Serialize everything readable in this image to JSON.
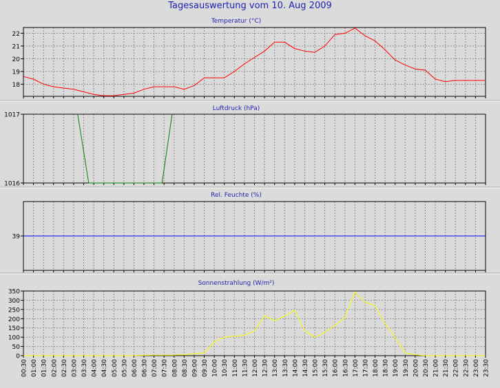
{
  "page_title": "Tagesauswertung vom 10. Aug 2009",
  "colors": {
    "background": "#dbdbdb",
    "title": "#1f1fb0",
    "grid": "#8c8c8c",
    "frame": "#000000",
    "temperature": "#ff0000",
    "pressure": "#008000",
    "humidity": "#0000ff",
    "radiation": "#ffff00"
  },
  "time_labels": [
    "00:30",
    "01:00",
    "01:30",
    "02:00",
    "02:30",
    "03:00",
    "03:30",
    "04:00",
    "04:30",
    "05:00",
    "05:30",
    "06:00",
    "06:30",
    "07:00",
    "07:30",
    "08:00",
    "08:30",
    "09:00",
    "09:30",
    "10:00",
    "10:30",
    "11:00",
    "11:30",
    "12:00",
    "12:30",
    "13:00",
    "13:30",
    "14:00",
    "14:30",
    "15:00",
    "15:30",
    "16:00",
    "16:30",
    "17:00",
    "17:30",
    "18:00",
    "18:30",
    "19:00",
    "19:30",
    "20:00",
    "20:30",
    "21:00",
    "21:30",
    "22:00",
    "22:30",
    "23:00",
    "23:30"
  ],
  "chart_data": [
    {
      "type": "line",
      "title": "Temperatur (°C)",
      "ylim": [
        17.05,
        22.45
      ],
      "yticks": [
        18,
        19,
        20,
        21,
        22
      ],
      "grid": true,
      "x": [
        0,
        1,
        2,
        3,
        4,
        5,
        6,
        7,
        8,
        9,
        10,
        11,
        12,
        13,
        14,
        15,
        16,
        17,
        18,
        19,
        20,
        21,
        22,
        23,
        24,
        25,
        26,
        27,
        28,
        29,
        30,
        31,
        32,
        33,
        34,
        35,
        36,
        37,
        38,
        39,
        40,
        41,
        42,
        43,
        44,
        45,
        46
      ],
      "series": [
        {
          "color": "#ff0000",
          "values": [
            18.6,
            18.4,
            18.0,
            17.8,
            17.7,
            17.6,
            17.4,
            17.2,
            17.1,
            17.1,
            17.2,
            17.3,
            17.6,
            17.8,
            17.8,
            17.8,
            17.6,
            17.9,
            18.5,
            18.5,
            18.5,
            19.0,
            19.6,
            20.1,
            20.6,
            21.3,
            21.3,
            20.8,
            20.6,
            20.5,
            21.0,
            21.9,
            22.0,
            22.4,
            21.8,
            21.4,
            20.7,
            19.9,
            19.5,
            19.2,
            19.1,
            18.4,
            18.2,
            18.3,
            18.3,
            18.3,
            18.3
          ]
        }
      ]
    },
    {
      "type": "line",
      "title": "Luftdruck (hPa)",
      "ylim": [
        1016,
        1017
      ],
      "yticks": [
        1016,
        1017
      ],
      "grid": true,
      "x": [
        5.4,
        6.5,
        13.8,
        14.8
      ],
      "series": [
        {
          "color": "#008000",
          "values": [
            1017,
            1016,
            1016,
            1017
          ]
        }
      ]
    },
    {
      "type": "line",
      "title": "Rel. Feuchte (%)",
      "ylim": [
        38,
        40
      ],
      "yticks": [
        39
      ],
      "grid": true,
      "x": [
        0,
        46
      ],
      "series": [
        {
          "color": "#0000ff",
          "values": [
            39,
            39
          ]
        }
      ]
    },
    {
      "type": "line",
      "title": "Sonnenstrahlung (W/m²)",
      "ylim": [
        0,
        350
      ],
      "yticks": [
        0,
        50,
        100,
        150,
        200,
        250,
        300,
        350
      ],
      "grid": true,
      "x": [
        0,
        1,
        2,
        3,
        4,
        5,
        6,
        7,
        8,
        9,
        10,
        11,
        12,
        13,
        14,
        15,
        16,
        17,
        18,
        19,
        20,
        21,
        22,
        23,
        24,
        25,
        26,
        27,
        28,
        29,
        30,
        31,
        32,
        33,
        34,
        35,
        36,
        37,
        38,
        39,
        40,
        41,
        42,
        43,
        44,
        45,
        46
      ],
      "series": [
        {
          "color": "#ffff00",
          "values": [
            0,
            0,
            0,
            0,
            0,
            0,
            0,
            0,
            0,
            0,
            0,
            0,
            2,
            3,
            3,
            3,
            5,
            10,
            15,
            75,
            100,
            105,
            110,
            135,
            215,
            190,
            215,
            245,
            135,
            100,
            125,
            165,
            205,
            345,
            290,
            270,
            175,
            100,
            15,
            5,
            0,
            0,
            0,
            0,
            0,
            0,
            0
          ]
        }
      ]
    }
  ]
}
